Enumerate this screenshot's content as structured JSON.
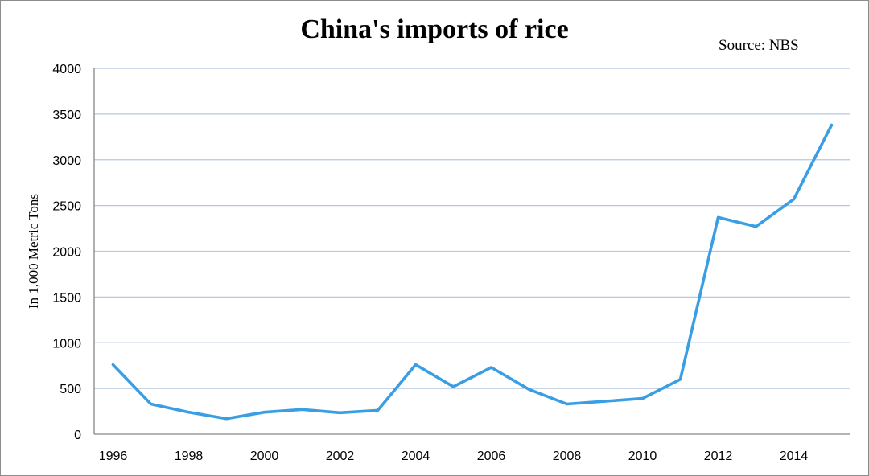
{
  "chart_data": {
    "type": "line",
    "title": "China's imports of rice",
    "source": "Source: NBS",
    "xlabel": "",
    "ylabel": "In 1,000 Metric Tons",
    "x": [
      1996,
      1997,
      1998,
      1999,
      2000,
      2001,
      2002,
      2003,
      2004,
      2005,
      2006,
      2007,
      2008,
      2009,
      2010,
      2011,
      2012,
      2013,
      2014,
      2015
    ],
    "series": [
      {
        "name": "",
        "values": [
          760,
          330,
          240,
          170,
          240,
          270,
          235,
          260,
          760,
          520,
          730,
          490,
          330,
          360,
          390,
          600,
          2370,
          2270,
          2570,
          3380
        ]
      }
    ],
    "x_tick_labels": [
      "1996",
      "1998",
      "2000",
      "2002",
      "2004",
      "2006",
      "2008",
      "2010",
      "2012",
      "2014"
    ],
    "y_tick_labels": [
      "0",
      "500",
      "1000",
      "1500",
      "2000",
      "2500",
      "3000",
      "3500",
      "4000"
    ],
    "ylim": [
      0,
      4000
    ],
    "xlim": [
      1995.5,
      2015.5
    ],
    "grid": "horizontal",
    "legend": "none",
    "colors": {
      "line": "#3a9ee4",
      "grid": "#b7c7e0",
      "axis": "#868686"
    }
  }
}
